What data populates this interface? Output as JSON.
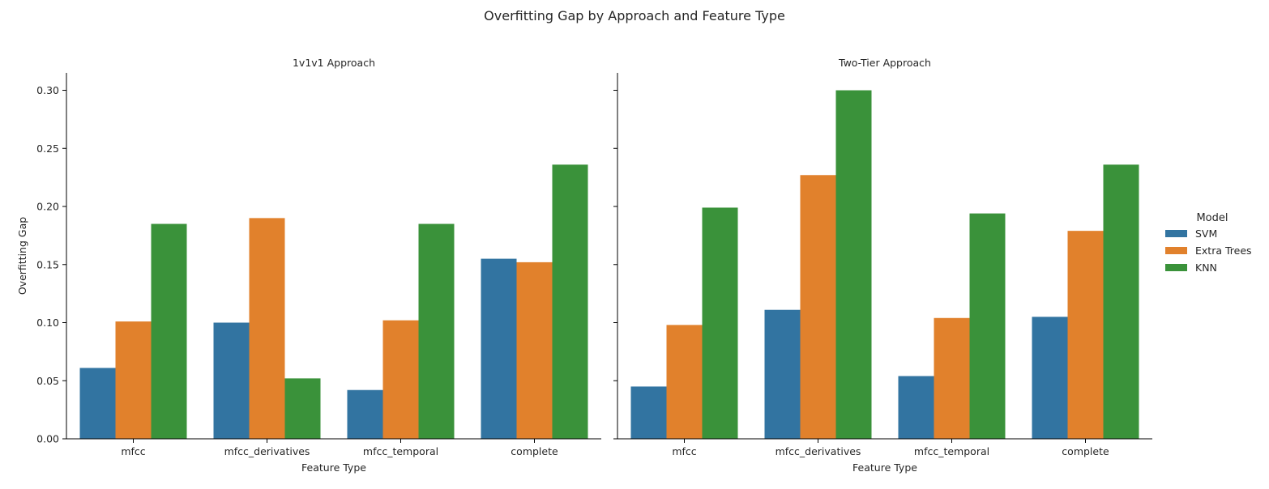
{
  "chart_data": {
    "type": "bar",
    "title": "Overfitting Gap by Approach and Feature Type",
    "ylabel": "Overfitting Gap",
    "xlabel": "Feature Type",
    "ylim": [
      0,
      0.315
    ],
    "yticks": [
      "0.00",
      "0.05",
      "0.10",
      "0.15",
      "0.20",
      "0.25",
      "0.30"
    ],
    "legend": {
      "title": "Model",
      "placement": "right",
      "entries": [
        "SVM",
        "Extra Trees",
        "KNN"
      ]
    },
    "colors": {
      "SVM": "#3274a1",
      "Extra Trees": "#e1812c",
      "KNN": "#3a923a"
    },
    "panels": [
      {
        "title": "1v1v1 Approach",
        "categories": [
          "mfcc",
          "mfcc_derivatives",
          "mfcc_temporal",
          "complete"
        ],
        "series": [
          {
            "name": "SVM",
            "values": [
              0.061,
              0.1,
              0.042,
              0.155
            ]
          },
          {
            "name": "Extra Trees",
            "values": [
              0.101,
              0.19,
              0.102,
              0.152
            ]
          },
          {
            "name": "KNN",
            "values": [
              0.185,
              0.052,
              0.185,
              0.236
            ]
          }
        ]
      },
      {
        "title": "Two-Tier Approach",
        "categories": [
          "mfcc",
          "mfcc_derivatives",
          "mfcc_temporal",
          "complete"
        ],
        "series": [
          {
            "name": "SVM",
            "values": [
              0.045,
              0.111,
              0.054,
              0.105
            ]
          },
          {
            "name": "Extra Trees",
            "values": [
              0.098,
              0.227,
              0.104,
              0.179
            ]
          },
          {
            "name": "KNN",
            "values": [
              0.199,
              0.3,
              0.194,
              0.236
            ]
          }
        ]
      }
    ]
  }
}
